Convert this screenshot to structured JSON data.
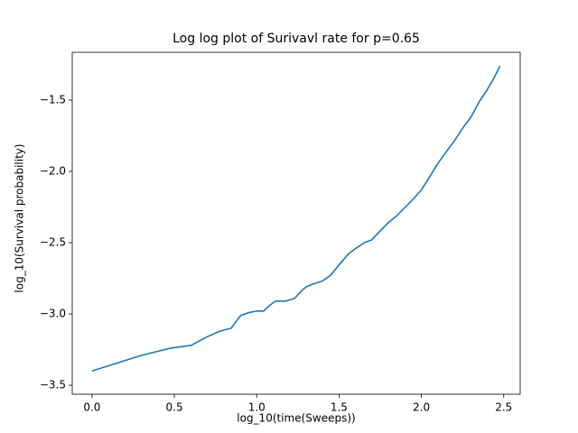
{
  "chart_data": {
    "type": "line",
    "title": "Log log plot of Surivavl rate for p=0.65",
    "x_label": "log_10(time(Sweeps))",
    "y_label": "log_10(Survival probability)",
    "x": [
      0,
      0.301,
      0.477,
      0.602,
      0.699,
      0.778,
      0.845,
      0.903,
      0.954,
      1.0,
      1.041,
      1.079,
      1.114,
      1.146,
      1.176,
      1.204,
      1.23,
      1.255,
      1.279,
      1.301,
      1.342,
      1.398,
      1.447,
      1.505,
      1.556,
      1.602,
      1.653,
      1.699,
      1.748,
      1.799,
      1.851,
      1.903,
      1.954,
      2.0,
      2.049,
      2.097,
      2.146,
      2.204,
      2.255,
      2.301,
      2.352,
      2.398,
      2.439,
      2.477
    ],
    "series": [
      {
        "name": "survival",
        "color": "#1f77b4",
        "values": [
          -3.4,
          -3.29,
          -3.24,
          -3.22,
          -3.16,
          -3.12,
          -3.1,
          -3.01,
          -2.99,
          -2.98,
          -2.98,
          -2.94,
          -2.91,
          -2.91,
          -2.91,
          -2.9,
          -2.89,
          -2.86,
          -2.83,
          -2.81,
          -2.79,
          -2.77,
          -2.73,
          -2.65,
          -2.58,
          -2.54,
          -2.5,
          -2.48,
          -2.42,
          -2.36,
          -2.31,
          -2.25,
          -2.19,
          -2.13,
          -2.04,
          -1.95,
          -1.87,
          -1.78,
          -1.69,
          -1.62,
          -1.51,
          -1.43,
          -1.35,
          -1.26
        ]
      }
    ],
    "xlim": [
      -0.12,
      2.6
    ],
    "ylim": [
      -3.563,
      -1.165
    ],
    "xticks": [
      {
        "value": 0,
        "label": "0.0"
      },
      0.5,
      {
        "value": 1,
        "label": "1.0"
      },
      1.5,
      {
        "value": 2,
        "label": "2.0"
      },
      2.5
    ],
    "yticks": [
      {
        "value": -3.5,
        "label": "−3.5"
      },
      {
        "value": -3.0,
        "label": "−3.0"
      },
      {
        "value": -2.5,
        "label": "−2.5"
      },
      {
        "value": -2.0,
        "label": "−2.0"
      },
      {
        "value": -1.5,
        "label": "−1.5"
      }
    ]
  }
}
